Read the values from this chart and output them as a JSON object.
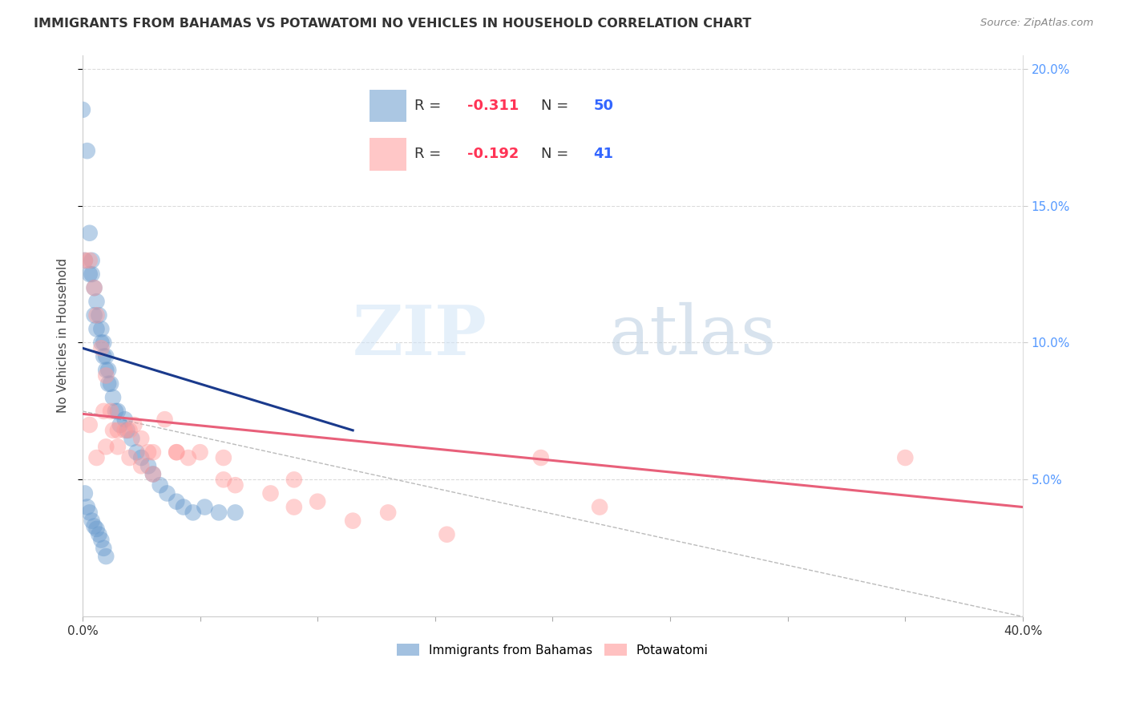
{
  "title": "IMMIGRANTS FROM BAHAMAS VS POTAWATOMI NO VEHICLES IN HOUSEHOLD CORRELATION CHART",
  "source": "Source: ZipAtlas.com",
  "ylabel": "No Vehicles in Household",
  "legend_labels": [
    "Immigrants from Bahamas",
    "Potawatomi"
  ],
  "blue_R": "-0.311",
  "blue_N": "50",
  "pink_R": "-0.192",
  "pink_N": "41",
  "blue_color": "#6699CC",
  "pink_color": "#FF9999",
  "blue_line_color": "#1A3A8C",
  "pink_line_color": "#E8607A",
  "background_color": "#FFFFFF",
  "watermark_zip": "ZIP",
  "watermark_atlas": "atlas",
  "xlim": [
    0.0,
    0.4
  ],
  "ylim": [
    0.0,
    0.205
  ],
  "xtick_positions": [
    0.0,
    0.05,
    0.1,
    0.15,
    0.2,
    0.25,
    0.3,
    0.35,
    0.4
  ],
  "xtick_labels_show": [
    "0.0%",
    "",
    "",
    "",
    "",
    "",
    "",
    "",
    "40.0%"
  ],
  "ytick_positions": [
    0.05,
    0.1,
    0.15,
    0.2
  ],
  "ytick_labels_right": [
    "5.0%",
    "10.0%",
    "15.0%",
    "20.0%"
  ],
  "blue_scatter_x": [
    0.0,
    0.002,
    0.001,
    0.003,
    0.003,
    0.004,
    0.004,
    0.005,
    0.005,
    0.006,
    0.006,
    0.007,
    0.008,
    0.008,
    0.009,
    0.009,
    0.01,
    0.01,
    0.011,
    0.011,
    0.012,
    0.013,
    0.014,
    0.015,
    0.016,
    0.018,
    0.019,
    0.021,
    0.023,
    0.025,
    0.028,
    0.03,
    0.033,
    0.036,
    0.04,
    0.043,
    0.047,
    0.052,
    0.058,
    0.065,
    0.001,
    0.002,
    0.003,
    0.004,
    0.005,
    0.006,
    0.007,
    0.008,
    0.009,
    0.01
  ],
  "blue_scatter_y": [
    0.185,
    0.17,
    0.13,
    0.14,
    0.125,
    0.13,
    0.125,
    0.12,
    0.11,
    0.115,
    0.105,
    0.11,
    0.105,
    0.1,
    0.1,
    0.095,
    0.095,
    0.09,
    0.09,
    0.085,
    0.085,
    0.08,
    0.075,
    0.075,
    0.07,
    0.072,
    0.068,
    0.065,
    0.06,
    0.058,
    0.055,
    0.052,
    0.048,
    0.045,
    0.042,
    0.04,
    0.038,
    0.04,
    0.038,
    0.038,
    0.045,
    0.04,
    0.038,
    0.035,
    0.033,
    0.032,
    0.03,
    0.028,
    0.025,
    0.022
  ],
  "pink_scatter_x": [
    0.001,
    0.003,
    0.005,
    0.006,
    0.008,
    0.009,
    0.01,
    0.012,
    0.013,
    0.015,
    0.018,
    0.02,
    0.022,
    0.025,
    0.028,
    0.03,
    0.035,
    0.04,
    0.045,
    0.05,
    0.06,
    0.065,
    0.08,
    0.09,
    0.1,
    0.115,
    0.13,
    0.155,
    0.195,
    0.22,
    0.003,
    0.006,
    0.01,
    0.015,
    0.02,
    0.025,
    0.03,
    0.04,
    0.06,
    0.09,
    0.35
  ],
  "pink_scatter_y": [
    0.13,
    0.13,
    0.12,
    0.11,
    0.098,
    0.075,
    0.088,
    0.075,
    0.068,
    0.068,
    0.068,
    0.068,
    0.07,
    0.065,
    0.06,
    0.06,
    0.072,
    0.06,
    0.058,
    0.06,
    0.05,
    0.048,
    0.045,
    0.04,
    0.042,
    0.035,
    0.038,
    0.03,
    0.058,
    0.04,
    0.07,
    0.058,
    0.062,
    0.062,
    0.058,
    0.055,
    0.052,
    0.06,
    0.058,
    0.05,
    0.058
  ],
  "blue_regline_x": [
    0.0,
    0.115
  ],
  "blue_regline_y": [
    0.098,
    0.068
  ],
  "pink_regline_x": [
    0.0,
    0.4
  ],
  "pink_regline_y": [
    0.074,
    0.04
  ],
  "dashed_line_x": [
    0.0,
    0.4
  ],
  "dashed_line_y": [
    0.075,
    0.0
  ]
}
